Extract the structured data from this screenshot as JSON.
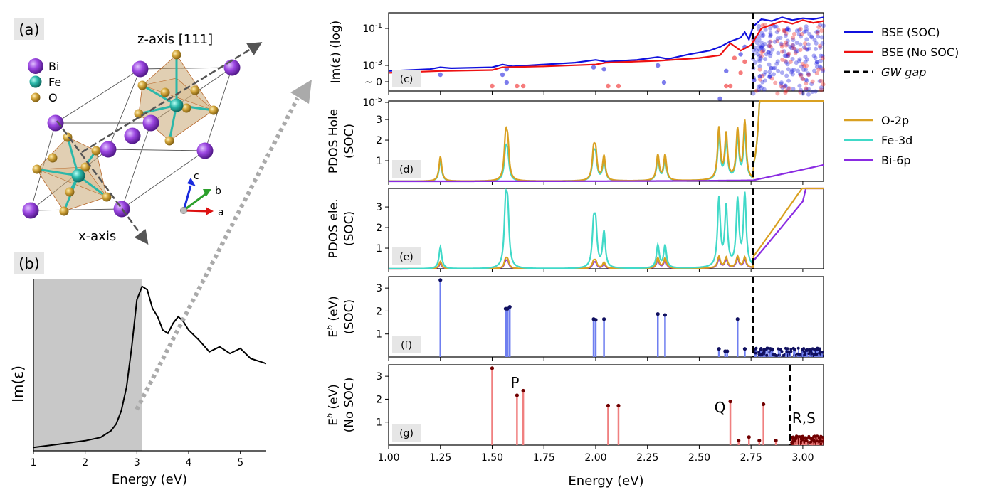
{
  "panel_a": {
    "label": "(a)",
    "legend": [
      "Bi",
      "Fe",
      "O"
    ],
    "z_axis_label": "z-axis [111]",
    "x_axis_label": "x-axis",
    "abc": [
      "a",
      "b",
      "c"
    ]
  },
  "panel_b": {
    "label": "(b)",
    "xlabel": "Energy (eV)",
    "ylabel": "Im(ε)"
  },
  "legend_top": [
    "BSE (SOC)",
    "BSE (No SOC)",
    "GW gap"
  ],
  "legend_pdos": [
    "O-2p",
    "Fe-3d",
    "Bi-6p"
  ],
  "colors": {
    "soc": "#1010dd",
    "nosoc": "#ee1111",
    "o2p": "#d9a021",
    "fe3d": "#40d9c8",
    "bi6p": "#8a2be2",
    "bi_atom": "#9a45e0",
    "fe_atom": "#2bb7a9",
    "o_atom": "#d1a43a",
    "shade": "#c8c8c8"
  },
  "annotations": {
    "P": "P",
    "Q": "Q",
    "RS": "R,S"
  },
  "chart_data": [
    {
      "type": "line",
      "panel": "(b)",
      "x": [
        1.0,
        1.5,
        2.0,
        2.3,
        2.5,
        2.6,
        2.7,
        2.8,
        2.9,
        3.0,
        3.1,
        3.2,
        3.3,
        3.4,
        3.5,
        3.6,
        3.7,
        3.8,
        3.9,
        4.0,
        4.2,
        4.4,
        4.6,
        4.8,
        5.0,
        5.2,
        5.5
      ],
      "y": [
        0.02,
        0.04,
        0.06,
        0.08,
        0.12,
        0.16,
        0.24,
        0.38,
        0.62,
        0.9,
        0.98,
        0.96,
        0.85,
        0.8,
        0.72,
        0.7,
        0.76,
        0.8,
        0.77,
        0.72,
        0.66,
        0.59,
        0.62,
        0.58,
        0.61,
        0.55,
        0.52
      ],
      "xlabel": "Energy (eV)",
      "ylabel": "Im(ε)",
      "xlim": [
        1.0,
        5.5
      ],
      "xticks": [
        1,
        2,
        3,
        4,
        5
      ],
      "shaded_x": [
        1.0,
        3.1
      ]
    },
    {
      "type": "line",
      "panel": "(c)",
      "ylabel": "Im(ε) (log)",
      "yticks": [
        "10^-1",
        "10^-3",
        "10^-5",
        "~ 0"
      ],
      "log_scale": true,
      "series": [
        {
          "name": "BSE (SOC)",
          "x": [
            1.0,
            1.2,
            1.25,
            1.3,
            1.5,
            1.55,
            1.6,
            1.75,
            1.9,
            2.0,
            2.05,
            2.2,
            2.3,
            2.35,
            2.45,
            2.55,
            2.6,
            2.65,
            2.7,
            2.72,
            2.74,
            2.76,
            2.8,
            2.85,
            2.9,
            2.95,
            3.0,
            3.05,
            3.1
          ],
          "y": [
            -3.3,
            -3.2,
            -3.1,
            -3.15,
            -3.1,
            -2.95,
            -3.05,
            -2.95,
            -2.85,
            -2.7,
            -2.8,
            -2.7,
            -2.55,
            -2.65,
            -2.4,
            -2.2,
            -2.0,
            -1.7,
            -1.5,
            -1.2,
            -1.6,
            -0.9,
            -0.5,
            -0.6,
            -0.4,
            -0.55,
            -0.45,
            -0.5,
            -0.4
          ]
        },
        {
          "name": "BSE (No SOC)",
          "x": [
            1.0,
            1.25,
            1.5,
            1.55,
            1.75,
            2.0,
            2.05,
            2.3,
            2.5,
            2.6,
            2.65,
            2.7,
            2.75,
            2.8,
            2.85,
            2.9,
            2.95,
            3.0,
            3.05,
            3.1
          ],
          "y": [
            -3.4,
            -3.3,
            -3.25,
            -3.1,
            -3.05,
            -2.95,
            -2.85,
            -2.75,
            -2.6,
            -2.45,
            -1.8,
            -2.2,
            -1.9,
            -1.0,
            -0.8,
            -0.6,
            -0.75,
            -0.55,
            -0.7,
            -0.6
          ]
        }
      ],
      "gw_gap": 2.76
    },
    {
      "type": "line",
      "panel": "(d)",
      "ylabel": "PDOS Hole (SOC)",
      "ylim": [
        0,
        3.9
      ],
      "yticks": [
        1,
        2,
        3
      ],
      "peaks": [
        {
          "e": 1.25,
          "o": 1.2,
          "fe": 1.0
        },
        {
          "e": 1.565,
          "o": 1.9,
          "fe": 1.3
        },
        {
          "e": 1.575,
          "o": 1.6,
          "fe": 1.1
        },
        {
          "e": 1.99,
          "o": 1.3,
          "fe": 1.1
        },
        {
          "e": 2.0,
          "o": 1.2,
          "fe": 1.0
        },
        {
          "e": 2.04,
          "o": 1.2,
          "fe": 1.0
        },
        {
          "e": 2.3,
          "o": 1.25,
          "fe": 1.05
        },
        {
          "e": 2.335,
          "o": 1.25,
          "fe": 1.05
        },
        {
          "e": 2.595,
          "o": 2.5,
          "fe": 2.1
        },
        {
          "e": 2.63,
          "o": 2.2,
          "fe": 1.8
        },
        {
          "e": 2.685,
          "o": 2.4,
          "fe": 2.0
        },
        {
          "e": 2.72,
          "o": 2.8,
          "fe": 2.3
        }
      ],
      "gw_gap": 2.76
    },
    {
      "type": "line",
      "panel": "(e)",
      "ylabel": "PDOS ele. (SOC)",
      "ylim": [
        0,
        3.9
      ],
      "yticks": [
        1,
        2,
        3
      ],
      "peaks": [
        {
          "e": 1.25,
          "fe": 1.05,
          "o": 0.35,
          "bi": 0.25
        },
        {
          "e": 1.565,
          "fe": 2.7,
          "o": 0.4,
          "bi": 0.3
        },
        {
          "e": 1.575,
          "fe": 2.5,
          "o": 0.35,
          "bi": 0.28
        },
        {
          "e": 1.99,
          "fe": 1.85,
          "o": 0.3,
          "bi": 0.22
        },
        {
          "e": 2.0,
          "fe": 1.8,
          "o": 0.3,
          "bi": 0.22
        },
        {
          "e": 2.04,
          "fe": 1.75,
          "o": 0.3,
          "bi": 0.22
        },
        {
          "e": 2.3,
          "fe": 1.1,
          "o": 0.5,
          "bi": 0.4
        },
        {
          "e": 2.335,
          "fe": 1.1,
          "o": 0.5,
          "bi": 0.4
        },
        {
          "e": 2.595,
          "fe": 3.3,
          "o": 0.55,
          "bi": 0.45
        },
        {
          "e": 2.63,
          "fe": 2.9,
          "o": 0.5,
          "bi": 0.4
        },
        {
          "e": 2.685,
          "fe": 3.2,
          "o": 0.55,
          "bi": 0.45
        },
        {
          "e": 2.72,
          "fe": 3.5,
          "o": 0.5,
          "bi": 0.4
        }
      ],
      "gw_gap": 2.76
    },
    {
      "type": "bar",
      "panel": "(f)",
      "ylabel": "E^b (eV) (SOC)",
      "ylim": [
        0,
        3.5
      ],
      "yticks": [
        1,
        2,
        3
      ],
      "x": [
        1.25,
        1.565,
        1.57,
        1.575,
        1.585,
        1.99,
        2.0,
        2.04,
        2.3,
        2.335,
        2.595,
        2.625,
        2.635,
        2.685,
        2.72
      ],
      "values": [
        3.35,
        2.1,
        2.1,
        2.1,
        2.18,
        1.65,
        1.62,
        1.65,
        1.87,
        1.83,
        0.35,
        0.25,
        0.25,
        1.65,
        0.35
      ],
      "gw_gap": 2.76
    },
    {
      "type": "bar",
      "panel": "(g)",
      "ylabel": "E^b (eV) (No SOC)",
      "ylim": [
        0,
        3.5
      ],
      "yticks": [
        1,
        2,
        3
      ],
      "x": [
        1.5,
        1.62,
        1.65,
        2.06,
        2.11,
        2.65,
        2.69,
        2.74,
        2.79,
        2.81,
        2.87
      ],
      "values": [
        3.35,
        2.17,
        2.37,
        1.72,
        1.72,
        1.9,
        0.2,
        0.35,
        0.2,
        1.78,
        0.2
      ],
      "gw_gap": 2.94,
      "xlabel": "Energy (eV)",
      "xlim": [
        1.0,
        3.1
      ],
      "xticks": [
        "1.00",
        "1.25",
        "1.50",
        "1.75",
        "2.00",
        "2.25",
        "2.50",
        "2.75",
        "3.00"
      ]
    }
  ]
}
